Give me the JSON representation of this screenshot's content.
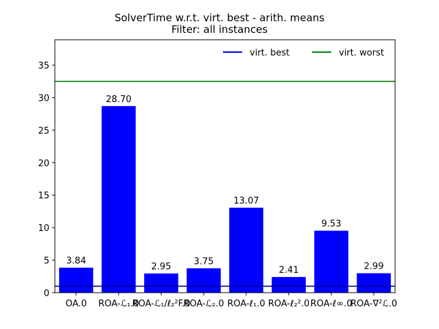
{
  "chart_data": {
    "type": "bar",
    "title": "SolverTime w.r.t. virt. best - arith. means",
    "subtitle": "Filter: all instances",
    "xlabel": "",
    "ylabel": "",
    "categories": [
      "OA.0",
      "ROA-ℒ₁.0",
      "ROA-ℒ₁/ℓ₂²F.0",
      "ROA-ℒ₂.0",
      "ROA-ℓ₁.0",
      "ROA-ℓ₂².0",
      "ROA-ℓ∞.0",
      "ROA-∇²ℒ.0"
    ],
    "values": [
      3.84,
      28.7,
      2.95,
      3.75,
      13.07,
      2.41,
      9.53,
      2.99
    ],
    "value_labels": [
      "3.84",
      "28.70",
      "2.95",
      "3.75",
      "13.07",
      "2.41",
      "9.53",
      "2.99"
    ],
    "bar_color": "#0000ff",
    "ylim": [
      0,
      38.9
    ],
    "yticks": [
      0,
      5,
      10,
      15,
      20,
      25,
      30,
      35
    ],
    "ytick_labels": [
      "0",
      "5",
      "10",
      "15",
      "20",
      "25",
      "30",
      "35"
    ],
    "reference_lines": [
      {
        "name": "virt. best",
        "value": 1.0,
        "color": "#00008b"
      },
      {
        "name": "virt. worst",
        "value": 32.5,
        "color": "#008000"
      }
    ],
    "legend": {
      "placement": "top-right",
      "frame": false,
      "entries": [
        {
          "label": "virt. best",
          "color": "#0000ff"
        },
        {
          "label": "virt. worst",
          "color": "#008000"
        }
      ]
    },
    "grid": false
  }
}
